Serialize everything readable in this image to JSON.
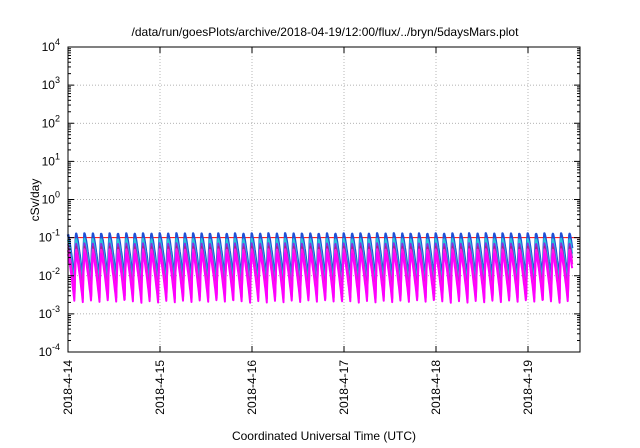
{
  "chart_data": {
    "type": "line",
    "title": "/data/run/goesPlots/archive/2018-04-19/12:00/flux/../bryn/5daysMars.plot",
    "xlabel": "Coordinated Universal Time (UTC)",
    "ylabel": "cSv/day",
    "y_scale": "log",
    "ylim": [
      0.0001,
      10000
    ],
    "y_ticks": [
      {
        "value": 0.0001,
        "base": "10",
        "exp": "-4"
      },
      {
        "value": 0.001,
        "base": "10",
        "exp": "-3"
      },
      {
        "value": 0.01,
        "base": "10",
        "exp": "-2"
      },
      {
        "value": 0.1,
        "base": "10",
        "exp": "-1"
      },
      {
        "value": 1,
        "base": "10",
        "exp": "0"
      },
      {
        "value": 10,
        "base": "10",
        "exp": "1"
      },
      {
        "value": 100,
        "base": "10",
        "exp": "2"
      },
      {
        "value": 1000,
        "base": "10",
        "exp": "3"
      },
      {
        "value": 10000,
        "base": "10",
        "exp": "4"
      }
    ],
    "x_ticks": [
      "2018-4-14",
      "2018-4-15",
      "2018-4-16",
      "2018-4-17",
      "2018-4-18",
      "2018-4-19"
    ],
    "xlim_days": [
      0,
      5.48
    ],
    "grid": true,
    "reference_line": {
      "value": 0.1,
      "color": "#ff0000"
    },
    "pulse_model": {
      "period_days": 0.0909,
      "peak": 0.13,
      "trough": 0.0065,
      "dip_fraction": 0.18
    },
    "series": [
      {
        "color": "#1f4fd6",
        "scale": 1.0,
        "width": 2.4
      },
      {
        "color": "#26c6da",
        "scale": 0.72,
        "width": 2.0
      },
      {
        "color": "#8a2be2",
        "scale": 0.55,
        "width": 1.8
      },
      {
        "color": "#b0208a",
        "scale": 0.45,
        "width": 1.6
      },
      {
        "color": "#ff1de0",
        "scale": 0.38,
        "width": 2.2
      },
      {
        "color": "#ff00ff",
        "scale": 0.3,
        "width": 2.0
      }
    ]
  }
}
